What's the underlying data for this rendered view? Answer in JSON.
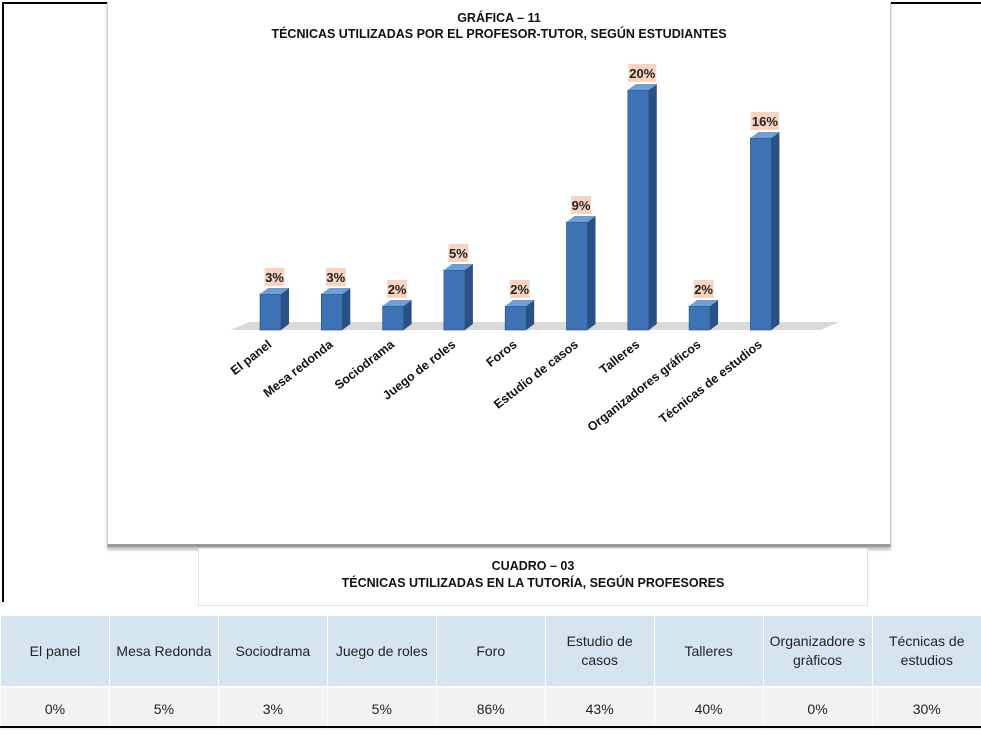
{
  "chart_data": {
    "type": "bar",
    "label": "GRÁFICA – 11",
    "title": "TÉCNICAS UTILIZADAS POR EL PROFESOR-TUTOR, SEGÚN ESTUDIANTES",
    "categories": [
      "El panel",
      "Mesa redonda",
      "Sociodrama",
      "Juego de roles",
      "Foros",
      "Estudio de casos",
      "Talleres",
      "Organizadores gráficos",
      "Técnicas de estudios"
    ],
    "values": [
      3,
      3,
      2,
      5,
      2,
      9,
      20,
      2,
      16
    ],
    "data_labels": [
      "3%",
      "3%",
      "2%",
      "5%",
      "2%",
      "9%",
      "20%",
      "2%",
      "16%"
    ],
    "unit": "%",
    "ylim": [
      0,
      20
    ],
    "grid": false,
    "legend": "none",
    "colors": {
      "bar": "#3d73b5",
      "bar_side": "#2a5186",
      "bar_top": "#6f9fd4",
      "label_bg": "#f8d3c0",
      "floor": "#d9d9d9"
    }
  },
  "cuadro": {
    "label": "CUADRO – 03",
    "title": "TÉCNICAS UTILIZADAS EN LA TUTORÍA, SEGÚN PROFESORES",
    "headers": [
      "El panel",
      "Mesa Redonda",
      "Sociodrama",
      "Juego de roles",
      "Foro",
      "Estudio de casos",
      "Talleres",
      "Organizadore s gràficos",
      "Técnicas de estudios"
    ],
    "values": [
      "0%",
      "5%",
      "3%",
      "5%",
      "86%",
      "43%",
      "40%",
      "0%",
      "30%"
    ],
    "colors": {
      "header_bg": "#d5e5f0",
      "row_bg": "#f2f2f2"
    }
  }
}
